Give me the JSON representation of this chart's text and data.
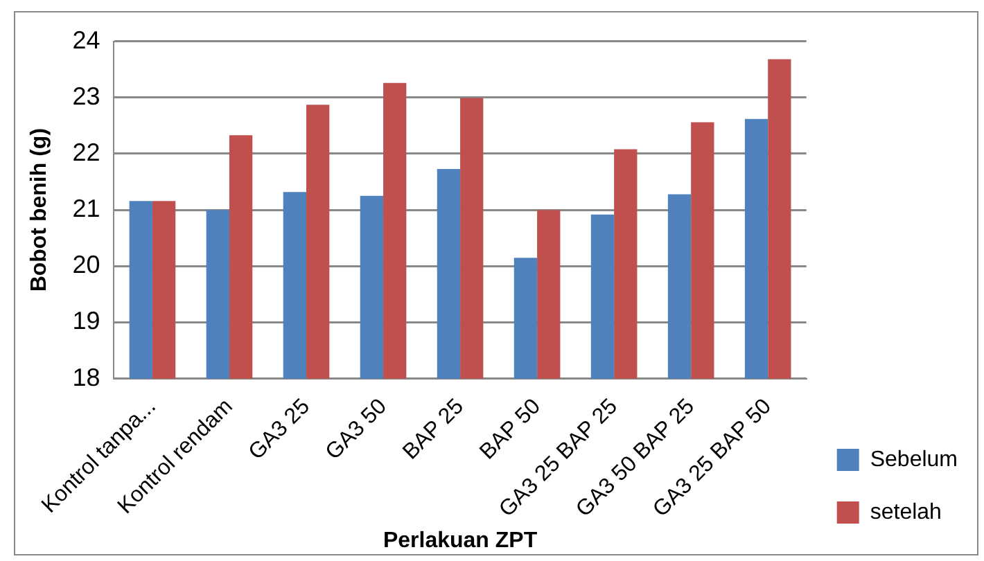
{
  "chart_data": {
    "type": "bar",
    "xlabel": "Perlakuan ZPT",
    "ylabel": "Bobot benih (g)",
    "categories": [
      "Kontrol tanpa...",
      "Kontrol rendam",
      "GA3 25",
      "GA3 50",
      "BAP 25",
      "BAP 50",
      "GA3 25 BAP 25",
      "GA3 50 BAP 25",
      "GA3 25 BAP 50"
    ],
    "series": [
      {
        "name": "Sebelum",
        "color": "#4f81bd",
        "values": [
          21.16,
          21.0,
          21.32,
          21.25,
          21.73,
          20.15,
          20.92,
          21.28,
          22.62
        ]
      },
      {
        "name": "setelah",
        "color": "#c0504d",
        "values": [
          21.16,
          22.33,
          22.87,
          23.26,
          22.99,
          21.0,
          22.08,
          22.56,
          23.68
        ]
      }
    ],
    "ylim": [
      18,
      24
    ],
    "yticks": [
      18,
      19,
      20,
      21,
      22,
      23,
      24
    ],
    "grid": "y",
    "legend": "right"
  }
}
